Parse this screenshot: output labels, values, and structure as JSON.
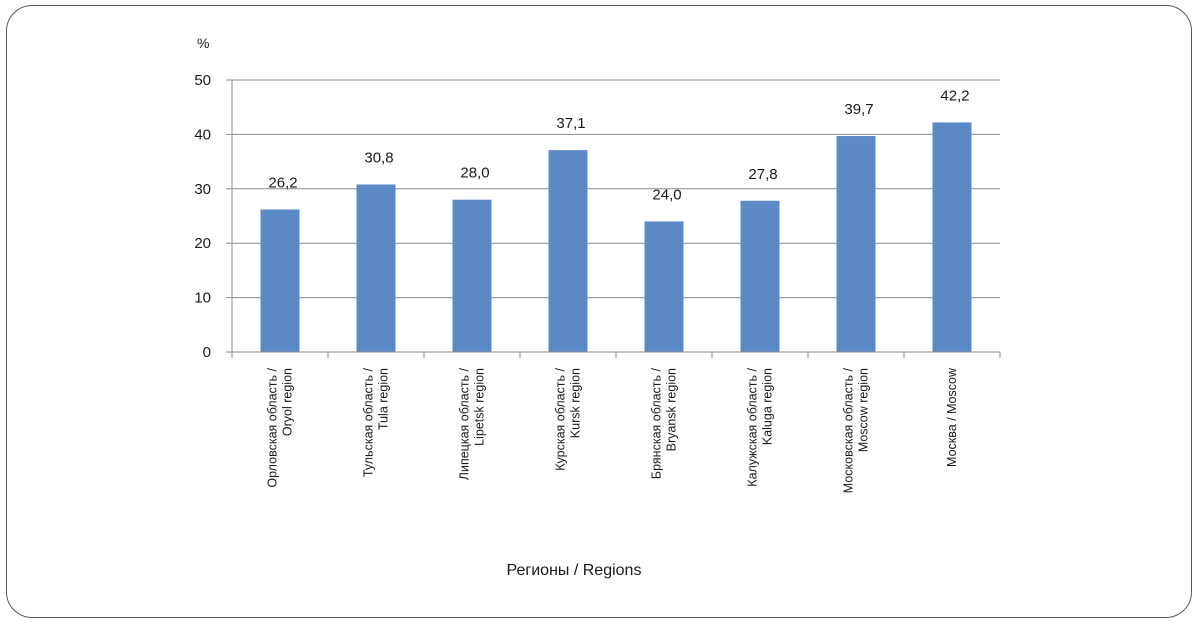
{
  "chart_data": {
    "type": "bar",
    "categories": [
      [
        "Орловская область /",
        "Oryol region"
      ],
      [
        "Тульская область /",
        "Tula region"
      ],
      [
        "Липецкая область /",
        "Lipetsk region"
      ],
      [
        "Курская область /",
        "Kursk region"
      ],
      [
        "Брянская область /",
        "Bryansk region"
      ],
      [
        "Калужская область /",
        "Kaluga region"
      ],
      [
        "Московская область /",
        "Moscow region"
      ],
      [
        "Москва / Moscow"
      ]
    ],
    "values": [
      26.2,
      30.8,
      28.0,
      37.1,
      24.0,
      27.8,
      39.7,
      42.2
    ],
    "data_labels": [
      "26,2",
      "30,8",
      "28,0",
      "37,1",
      "24,0",
      "27,8",
      "39,7",
      "42,2"
    ],
    "ylabel": "%",
    "xlabel": "Регионы / Regions",
    "ylim": [
      0,
      50
    ],
    "yticks": [
      0,
      10,
      20,
      30,
      40,
      50
    ],
    "grid": true,
    "legend": "none",
    "bar_color": "#5b8ac7",
    "grid_color": "#8c8c8c"
  }
}
